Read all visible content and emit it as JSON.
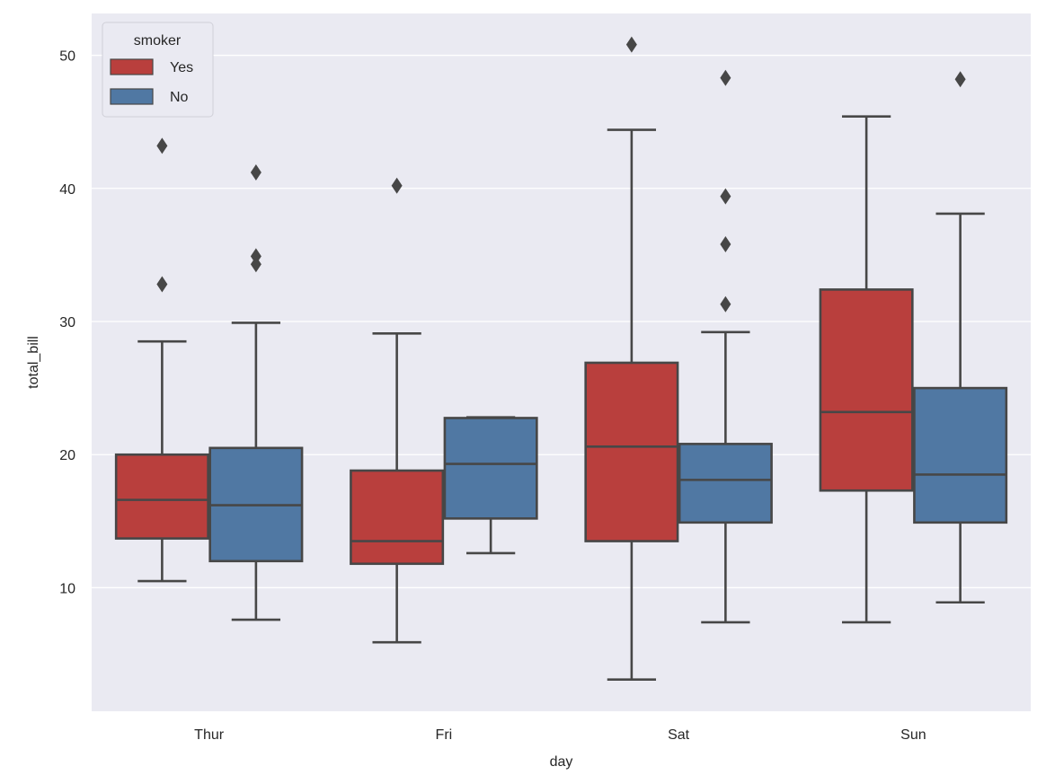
{
  "chart_data": {
    "type": "box",
    "title": "",
    "xlabel": "day",
    "ylabel": "total_bill",
    "categories": [
      "Thur",
      "Fri",
      "Sat",
      "Sun"
    ],
    "ylim": [
      0.72,
      53.14
    ],
    "yticks": [
      10,
      20,
      30,
      40,
      50
    ],
    "grid": true,
    "background": "#EAEAF2",
    "legend": {
      "title": "smoker",
      "placement": "top-left",
      "entries": [
        {
          "label": "Yes",
          "color": "#B93F3D"
        },
        {
          "label": "No",
          "color": "#5078A3"
        }
      ]
    },
    "series": [
      {
        "name": "Yes",
        "color": "#B93F3D",
        "boxes": [
          {
            "category": "Thur",
            "whisker_low": 10.5,
            "q1": 13.7,
            "median": 16.6,
            "q3": 20.0,
            "whisker_high": 28.5,
            "outliers": [
              32.8,
              43.2
            ]
          },
          {
            "category": "Fri",
            "whisker_low": 5.9,
            "q1": 11.8,
            "median": 13.5,
            "q3": 18.8,
            "whisker_high": 29.1,
            "outliers": [
              40.2
            ]
          },
          {
            "category": "Sat",
            "whisker_low": 3.1,
            "q1": 13.5,
            "median": 20.6,
            "q3": 26.9,
            "whisker_high": 44.4,
            "outliers": [
              50.8
            ]
          },
          {
            "category": "Sun",
            "whisker_low": 7.4,
            "q1": 17.3,
            "median": 23.2,
            "q3": 32.4,
            "whisker_high": 45.4,
            "outliers": []
          }
        ]
      },
      {
        "name": "No",
        "color": "#5078A3",
        "boxes": [
          {
            "category": "Thur",
            "whisker_low": 7.6,
            "q1": 12.0,
            "median": 16.2,
            "q3": 20.5,
            "whisker_high": 29.9,
            "outliers": [
              34.3,
              34.9,
              41.2
            ]
          },
          {
            "category": "Fri",
            "whisker_low": 12.6,
            "q1": 15.2,
            "median": 19.3,
            "q3": 22.75,
            "whisker_high": 22.8,
            "outliers": []
          },
          {
            "category": "Sat",
            "whisker_low": 7.4,
            "q1": 14.9,
            "median": 18.1,
            "q3": 20.8,
            "whisker_high": 29.2,
            "outliers": [
              31.3,
              35.8,
              39.4,
              48.3
            ]
          },
          {
            "category": "Sun",
            "whisker_low": 8.9,
            "q1": 14.9,
            "median": 18.5,
            "q3": 25.0,
            "whisker_high": 38.1,
            "outliers": [
              48.2
            ]
          }
        ]
      }
    ],
    "line_color": "#474747"
  }
}
